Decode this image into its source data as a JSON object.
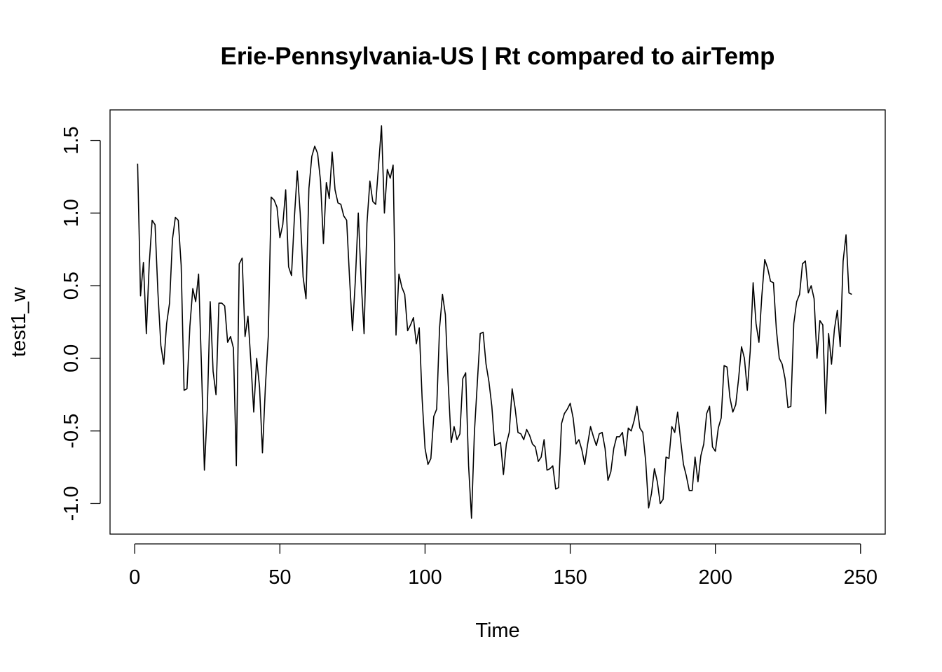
{
  "chart_data": {
    "type": "line",
    "title": "Erie-Pennsylvania-US | Rt compared to airTemp",
    "xlabel": "Time",
    "ylabel": "test1_w",
    "xlim": [
      -8.5,
      258.5
    ],
    "ylim": [
      -1.21,
      1.71
    ],
    "x_ticks": [
      0,
      50,
      100,
      150,
      200,
      250
    ],
    "x_tick_labels": [
      "0",
      "50",
      "100",
      "150",
      "200",
      "250"
    ],
    "y_ticks": [
      -1.0,
      -0.5,
      0.0,
      0.5,
      1.0,
      1.5
    ],
    "y_tick_labels": [
      "-1.0",
      "-0.5",
      "0.0",
      "0.5",
      "1.0",
      "1.5"
    ],
    "series": [
      {
        "color": "#000000",
        "x_start": 1,
        "x_step": 1,
        "values": [
          1.34,
          0.43,
          0.66,
          0.17,
          0.65,
          0.95,
          0.92,
          0.45,
          0.09,
          -0.04,
          0.24,
          0.38,
          0.82,
          0.97,
          0.95,
          0.64,
          -0.22,
          -0.21,
          0.22,
          0.48,
          0.39,
          0.58,
          -0.06,
          -0.77,
          -0.35,
          0.39,
          -0.09,
          -0.25,
          0.38,
          0.38,
          0.36,
          0.11,
          0.15,
          0.07,
          -0.74,
          0.65,
          0.69,
          0.15,
          0.29,
          -0.02,
          -0.37,
          0.0,
          -0.2,
          -0.65,
          -0.2,
          0.15,
          1.11,
          1.09,
          1.04,
          0.83,
          0.92,
          1.16,
          0.63,
          0.57,
          0.97,
          1.29,
          1.0,
          0.56,
          0.41,
          1.17,
          1.39,
          1.46,
          1.41,
          1.22,
          0.79,
          1.21,
          1.1,
          1.42,
          1.16,
          1.07,
          1.06,
          0.98,
          0.95,
          0.55,
          0.19,
          0.54,
          1.0,
          0.53,
          0.17,
          0.93,
          1.22,
          1.08,
          1.06,
          1.33,
          1.6,
          1.0,
          1.3,
          1.24,
          1.33,
          0.16,
          0.58,
          0.49,
          0.44,
          0.19,
          0.23,
          0.28,
          0.1,
          0.21,
          -0.28,
          -0.62,
          -0.73,
          -0.69,
          -0.4,
          -0.35,
          0.21,
          0.44,
          0.3,
          -0.18,
          -0.58,
          -0.47,
          -0.56,
          -0.52,
          -0.14,
          -0.1,
          -0.74,
          -1.1,
          -0.51,
          -0.17,
          0.17,
          0.18,
          -0.04,
          -0.16,
          -0.33,
          -0.6,
          -0.59,
          -0.58,
          -0.8,
          -0.59,
          -0.51,
          -0.21,
          -0.34,
          -0.51,
          -0.52,
          -0.56,
          -0.49,
          -0.53,
          -0.59,
          -0.61,
          -0.71,
          -0.68,
          -0.56,
          -0.77,
          -0.76,
          -0.74,
          -0.9,
          -0.89,
          -0.45,
          -0.38,
          -0.35,
          -0.31,
          -0.41,
          -0.59,
          -0.56,
          -0.63,
          -0.73,
          -0.59,
          -0.47,
          -0.54,
          -0.6,
          -0.52,
          -0.51,
          -0.62,
          -0.84,
          -0.78,
          -0.62,
          -0.54,
          -0.54,
          -0.51,
          -0.67,
          -0.48,
          -0.5,
          -0.43,
          -0.33,
          -0.48,
          -0.51,
          -0.71,
          -1.03,
          -0.93,
          -0.76,
          -0.85,
          -1.0,
          -0.97,
          -0.68,
          -0.69,
          -0.47,
          -0.51,
          -0.37,
          -0.56,
          -0.73,
          -0.81,
          -0.91,
          -0.91,
          -0.68,
          -0.85,
          -0.67,
          -0.59,
          -0.38,
          -0.33,
          -0.61,
          -0.64,
          -0.48,
          -0.41,
          -0.05,
          -0.06,
          -0.27,
          -0.37,
          -0.32,
          -0.14,
          0.08,
          0.0,
          -0.22,
          0.05,
          0.52,
          0.24,
          0.11,
          0.43,
          0.68,
          0.62,
          0.53,
          0.52,
          0.2,
          0.0,
          -0.04,
          -0.14,
          -0.34,
          -0.33,
          0.24,
          0.39,
          0.44,
          0.65,
          0.67,
          0.45,
          0.5,
          0.41,
          0.0,
          0.26,
          0.23,
          -0.38,
          0.17,
          -0.04,
          0.2,
          0.33,
          0.08,
          0.67,
          0.85,
          0.45,
          0.44
        ]
      }
    ]
  }
}
